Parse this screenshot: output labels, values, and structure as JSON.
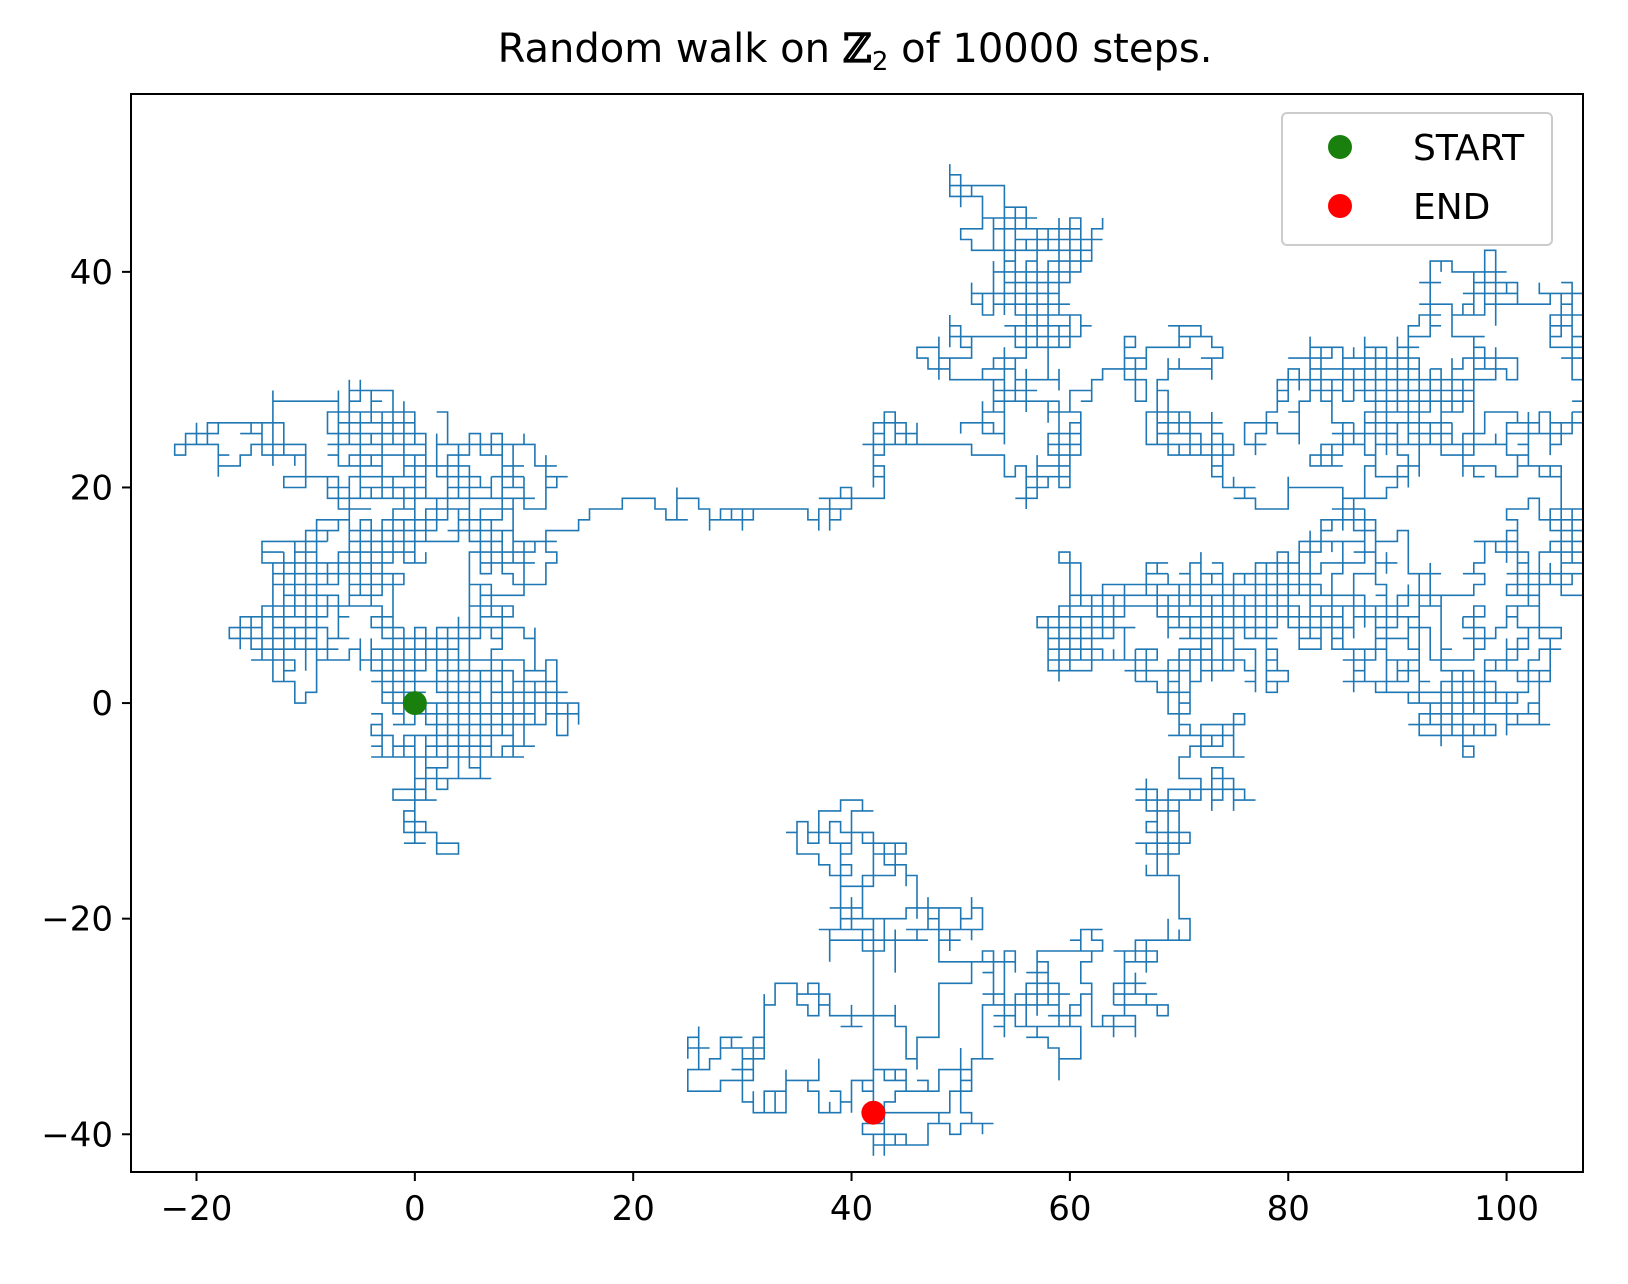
{
  "chart_data": {
    "type": "line",
    "title": "Random walk on ℤ₂ of 10000 steps.",
    "title_main": "Random walk on ",
    "title_math": "ℤ",
    "title_sub": "2",
    "title_end": " of 10000 steps.",
    "xlabel": "",
    "ylabel": "",
    "xlim": [
      -26,
      107
    ],
    "ylim": [
      -43.5,
      56.5
    ],
    "xticks": [
      -20,
      0,
      20,
      40,
      60,
      80,
      100
    ],
    "yticks": [
      -40,
      -20,
      0,
      20,
      40
    ],
    "xtick_labels": [
      "−20",
      "0",
      "20",
      "40",
      "60",
      "80",
      "100"
    ],
    "ytick_labels": [
      "−40",
      "−20",
      "0",
      "20",
      "40"
    ],
    "grid": false,
    "legend_position": "top-right",
    "series": [
      {
        "name": "",
        "kind": "walk",
        "color": "#1f77b4",
        "steps": 10000,
        "start": [
          0,
          0
        ],
        "end": [
          42,
          -38
        ]
      },
      {
        "name": "START",
        "kind": "marker",
        "color": "#1a800d",
        "x": 0,
        "y": 0
      },
      {
        "name": "END",
        "kind": "marker",
        "color": "#ff0000",
        "x": 42,
        "y": -38
      }
    ]
  }
}
